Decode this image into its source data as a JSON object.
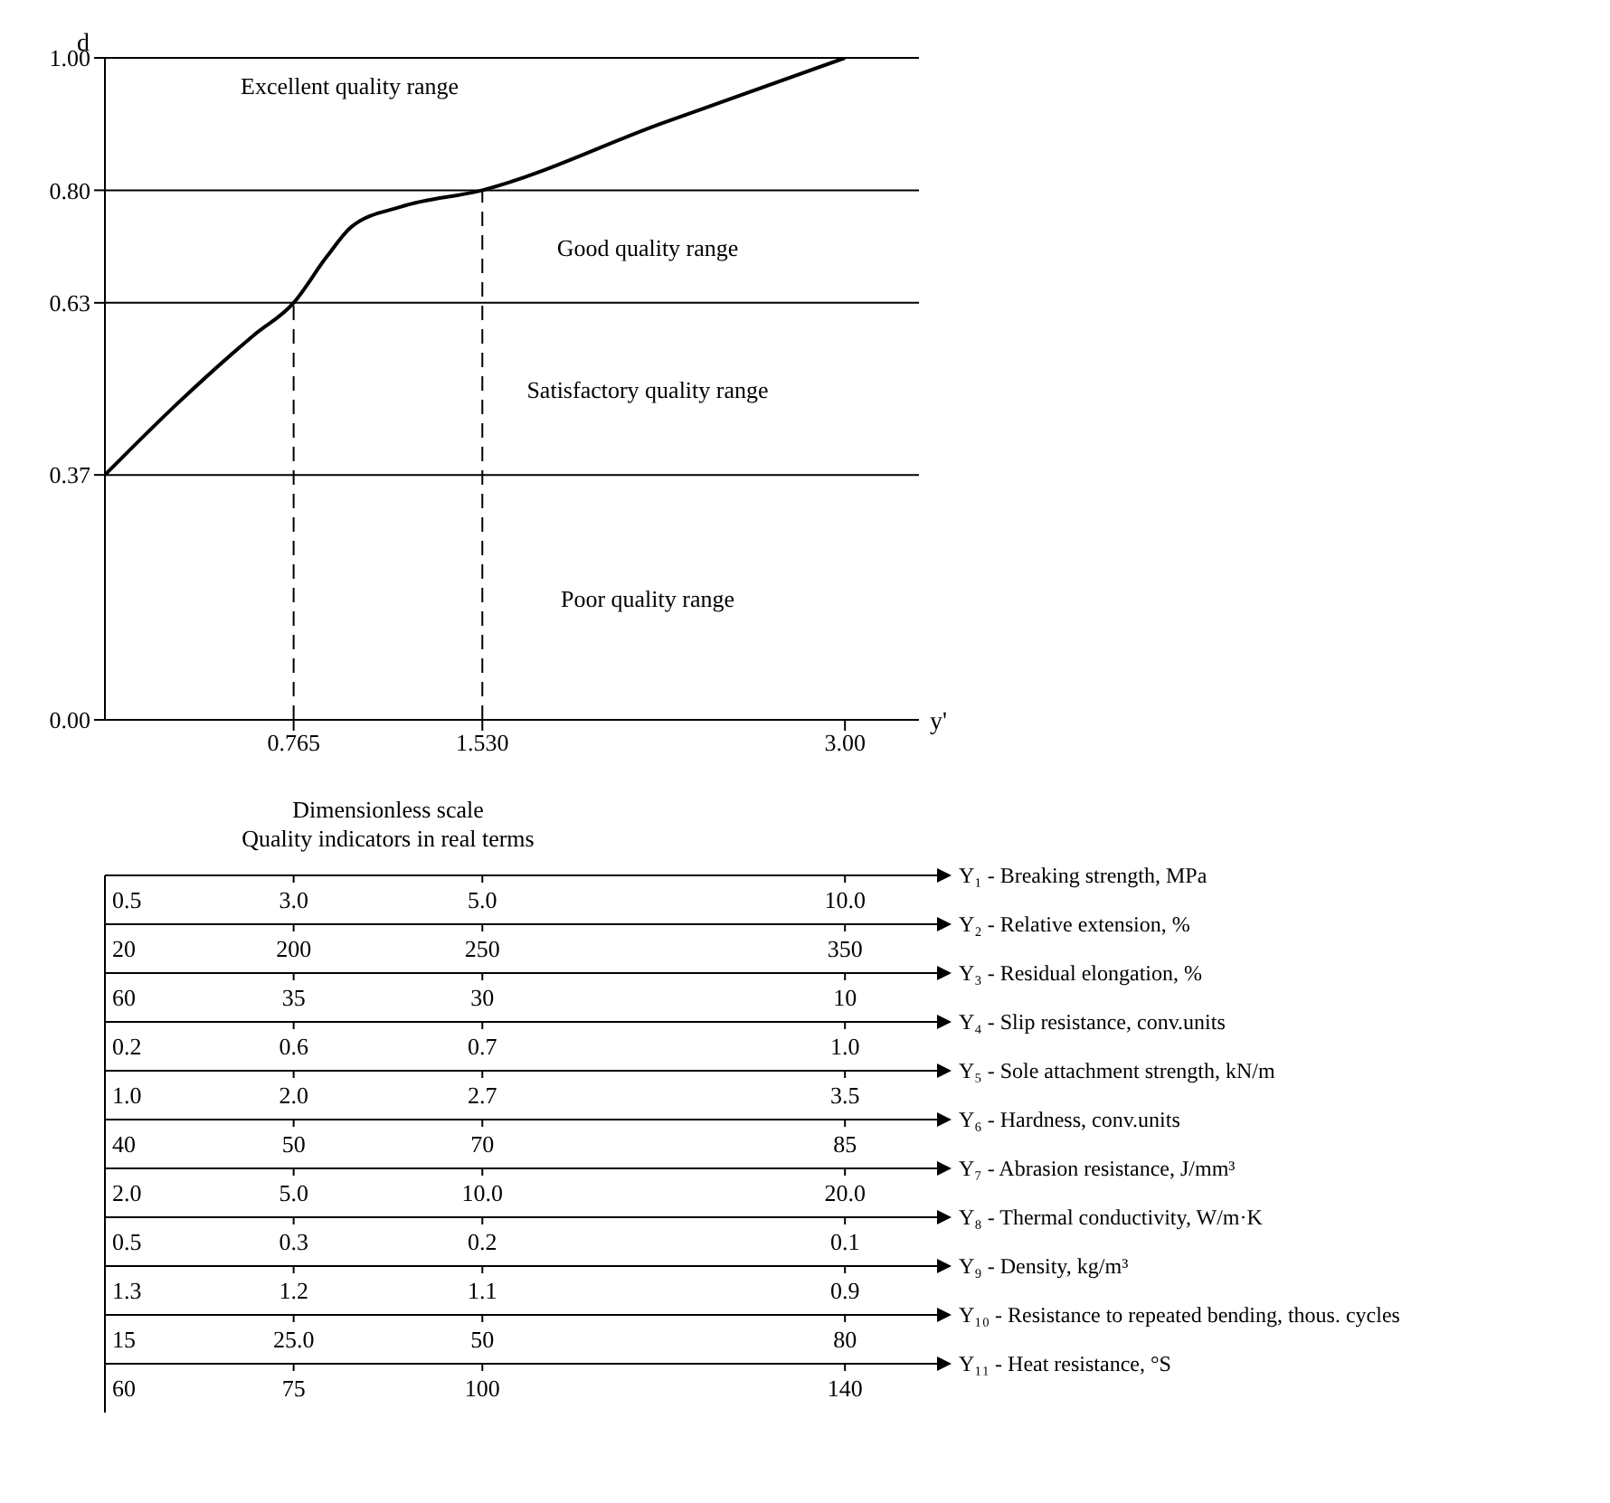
{
  "chart_data": {
    "type": "line",
    "xlabel": "y'",
    "ylabel": "d",
    "x": [
      0,
      0.3,
      0.6,
      0.765,
      0.9,
      1.0,
      1.2,
      1.53,
      2.25,
      3.0
    ],
    "series": [
      {
        "color": "#000000",
        "values": [
          0.37,
          0.48,
          0.58,
          0.63,
          0.7,
          0.745,
          0.775,
          0.8,
          0.9,
          1.0
        ]
      }
    ],
    "xlim": [
      0,
      3.3
    ],
    "ylim": [
      0,
      1
    ],
    "xticks": [
      0.765,
      {
        "value": 1.53,
        "label": "1.530"
      },
      {
        "value": 3,
        "label": "3.00"
      }
    ],
    "yticks": [
      {
        "value": 0,
        "label": "0.00"
      },
      0.37,
      0.63,
      {
        "value": 0.8,
        "label": "0.80"
      },
      {
        "value": 1,
        "label": "1.00"
      }
    ],
    "ref_lines": [
      {
        "axis": "x",
        "value": 0.765,
        "line_style": "dashed"
      },
      {
        "axis": "x",
        "value": 1.53,
        "line_style": "dashed"
      }
    ],
    "grid": "y",
    "legend": false,
    "marker": "none",
    "annotations": [
      "Excellent quality range",
      "Good quality range",
      "Satisfactory quality range",
      "Poor quality range",
      "Dimensionless scale",
      "Quality indicators in real terms",
      "Y₁ - Breaking strength, MPa",
      "0.5",
      "3.0",
      "5.0",
      "10.0",
      "Y₂ - Relative extension, %",
      "20",
      "200",
      "250",
      "350",
      "Y₃ - Residual elongation, %",
      "60",
      "35",
      "30",
      "10",
      "Y₄ - Slip resistance, conv.units",
      "0.2",
      "0.6",
      "0.7",
      "1.0",
      "Y₅ - Sole attachment strength, kN/m",
      "1.0",
      "2.0",
      "2.7",
      "3.5",
      "Y₆ - Hardness, conv.units",
      "40",
      "50",
      "70",
      "85",
      "Y₇ - Abrasion resistance, J/mm³",
      "2.0",
      "5.0",
      "10.0",
      "20.0",
      "Y₈ - Thermal conductivity, W/m·K",
      "0.5",
      "0.3",
      "0.2",
      "0.1",
      "Y₉ - Density, kg/m³",
      "1.3",
      "1.2",
      "1.1",
      "0.9",
      "Y₁₀ - Resistance to repeated bending, thous. cycles",
      "15",
      "25.0",
      "50",
      "80",
      "Y₁₁ - Heat resistance, °S",
      "60",
      "75",
      "100",
      "140"
    ]
  }
}
